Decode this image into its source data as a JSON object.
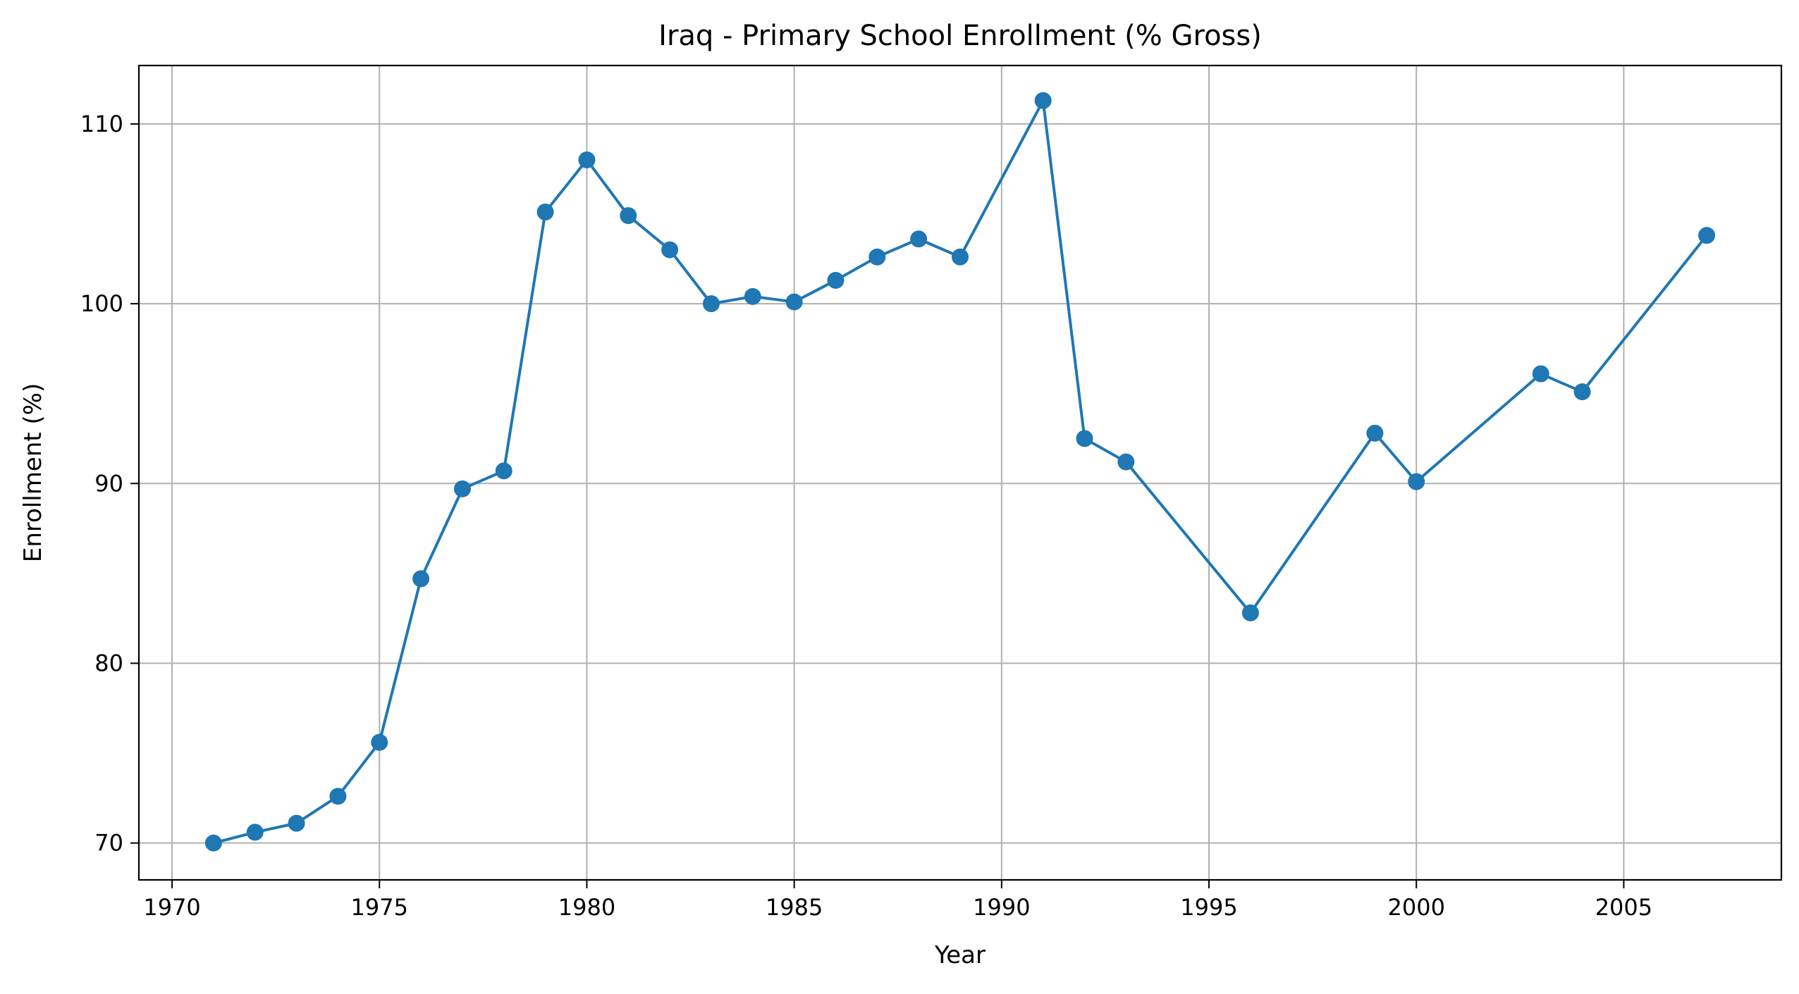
{
  "chart_data": {
    "type": "line",
    "title": "Iraq - Primary School Enrollment (% Gross)",
    "xlabel": "Year",
    "ylabel": "Enrollment (%)",
    "xlim": [
      1969.2,
      2008.8
    ],
    "ylim": [
      67.95,
      113.25
    ],
    "x_ticks": [
      1970,
      1975,
      1980,
      1985,
      1990,
      1995,
      2000,
      2005
    ],
    "y_ticks": [
      70,
      80,
      90,
      100,
      110
    ],
    "grid": true,
    "legend": "none",
    "colors": {
      "series": "#1f77b4",
      "grid": "#b0b0b0",
      "axes": "#000000"
    },
    "series": [
      {
        "x": [
          1971,
          1972,
          1973,
          1974,
          1975,
          1976,
          1977,
          1978,
          1979,
          1980,
          1981,
          1982,
          1983,
          1984,
          1985,
          1986,
          1987,
          1988,
          1989,
          1991,
          1992,
          1993,
          1996,
          1999,
          2000,
          2003,
          2004,
          2007
        ],
        "y": [
          70.0,
          70.6,
          71.1,
          72.6,
          75.6,
          84.7,
          89.7,
          90.7,
          105.1,
          108.0,
          104.9,
          103.0,
          100.0,
          100.4,
          100.1,
          101.3,
          102.6,
          103.6,
          102.6,
          111.3,
          92.5,
          91.2,
          82.8,
          92.8,
          90.1,
          96.1,
          95.1,
          103.8
        ]
      }
    ]
  }
}
